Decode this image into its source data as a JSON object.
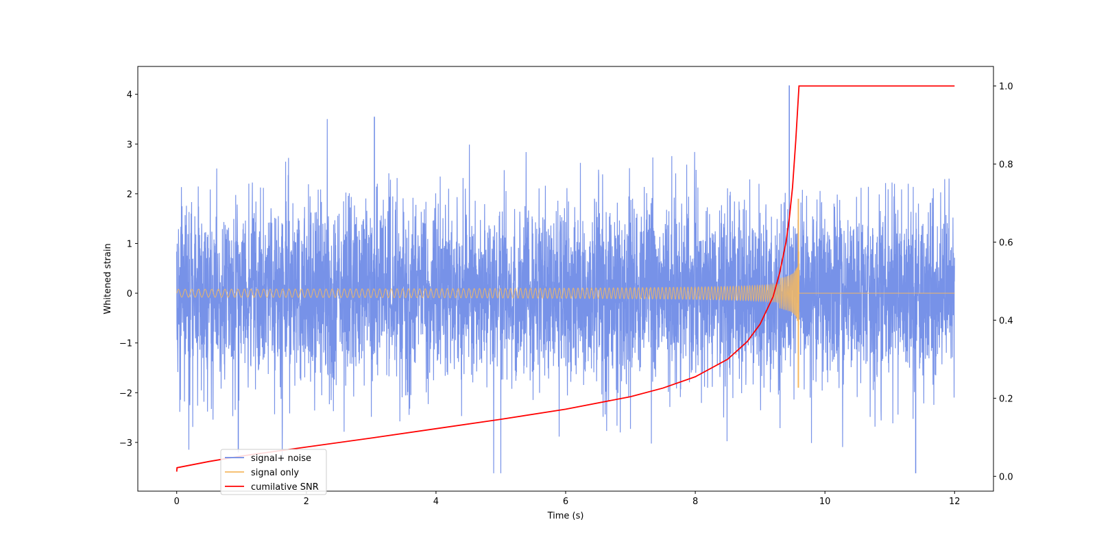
{
  "chart_data": {
    "type": "line",
    "title": "",
    "xlabel": "Time (s)",
    "ylabel": "Whitened strain",
    "y2label": "",
    "xlim": [
      -0.6,
      12.6
    ],
    "ylim": [
      -3.98,
      4.56
    ],
    "y2lim": [
      -0.038,
      1.05
    ],
    "xticks": [
      0,
      2,
      4,
      6,
      8,
      10,
      12
    ],
    "xtick_labels": [
      "0",
      "2",
      "4",
      "6",
      "8",
      "10",
      "12"
    ],
    "yticks": [
      -3,
      -2,
      -1,
      0,
      1,
      2,
      3,
      4
    ],
    "ytick_labels": [
      "−3",
      "−2",
      "−1",
      "0",
      "1",
      "2",
      "3",
      "4"
    ],
    "y2ticks": [
      0.0,
      0.2,
      0.4,
      0.6,
      0.8,
      1.0
    ],
    "y2tick_labels": [
      "0.0",
      "0.2",
      "0.4",
      "0.6",
      "0.8",
      "1.0"
    ],
    "grid": false,
    "legend_position": "lower-left",
    "series": [
      {
        "name": "signal+ noise",
        "axis": "left",
        "color": "#6b89e6",
        "kind": "noise",
        "t_start": 0,
        "t_end": 12,
        "noise_std": 0.9,
        "max": 4.18,
        "min": -3.62
      },
      {
        "name": "signal only",
        "axis": "left",
        "color": "#f5b860",
        "kind": "chirp",
        "t_start": 0,
        "t_merger": 9.6,
        "t_end": 12,
        "peak_amplitude": 2.0,
        "start_amplitude": 0.08
      },
      {
        "name": "cumilative SNR",
        "axis": "right",
        "color": "#ff0000",
        "x": [
          0,
          0.005,
          0.5,
          1,
          2,
          3,
          4,
          5,
          6,
          7,
          7.5,
          8,
          8.5,
          8.8,
          9.0,
          9.2,
          9.3,
          9.4,
          9.45,
          9.5,
          9.55,
          9.6,
          12
        ],
        "y": [
          0.012,
          0.022,
          0.038,
          0.052,
          0.075,
          0.098,
          0.122,
          0.146,
          0.172,
          0.204,
          0.226,
          0.255,
          0.3,
          0.345,
          0.39,
          0.46,
          0.52,
          0.6,
          0.66,
          0.74,
          0.86,
          1.0,
          1.0
        ]
      }
    ]
  }
}
